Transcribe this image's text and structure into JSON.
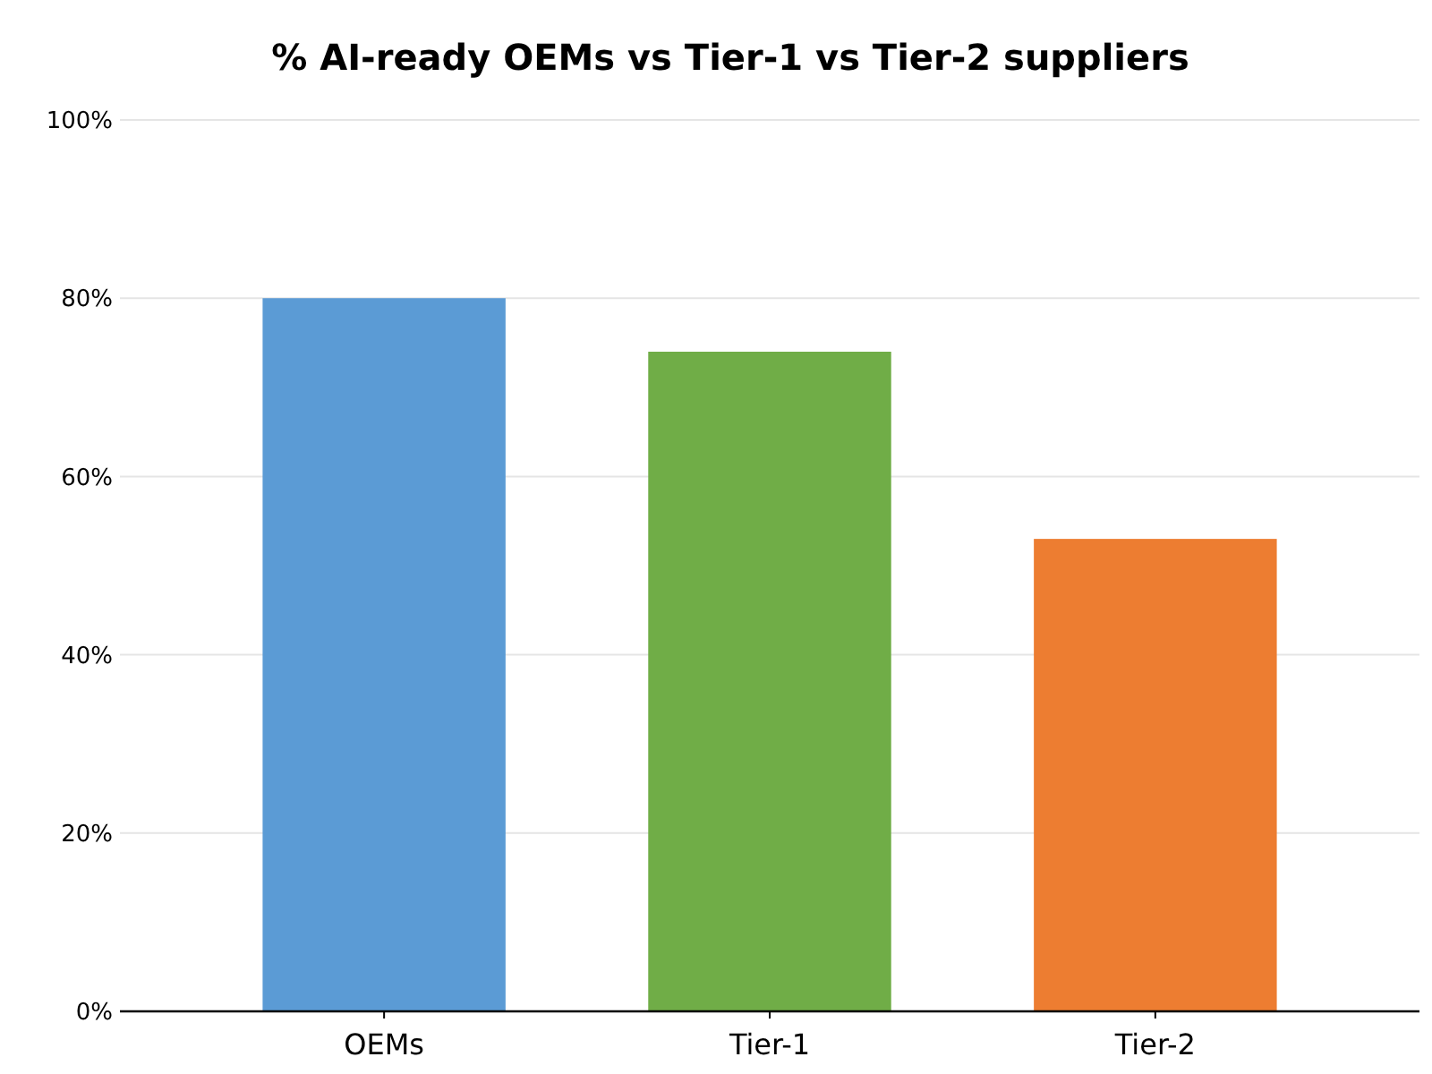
{
  "chart_data": {
    "type": "bar",
    "title": "% AI-ready OEMs vs Tier-1 vs Tier-2 suppliers",
    "categories": [
      "OEMs",
      "Tier-1",
      "Tier-2"
    ],
    "values": [
      80,
      74,
      53
    ],
    "colors": [
      "#5b9bd5",
      "#70ad47",
      "#ed7d31"
    ],
    "ylim": [
      0,
      100
    ],
    "yticks": [
      {
        "value": 0,
        "label": "0%"
      },
      {
        "value": 20,
        "label": "20%"
      },
      {
        "value": 40,
        "label": "40%"
      },
      {
        "value": 60,
        "label": "60%"
      },
      {
        "value": 80,
        "label": "80%"
      },
      {
        "value": 100,
        "label": "100%"
      }
    ],
    "grid": "y"
  }
}
